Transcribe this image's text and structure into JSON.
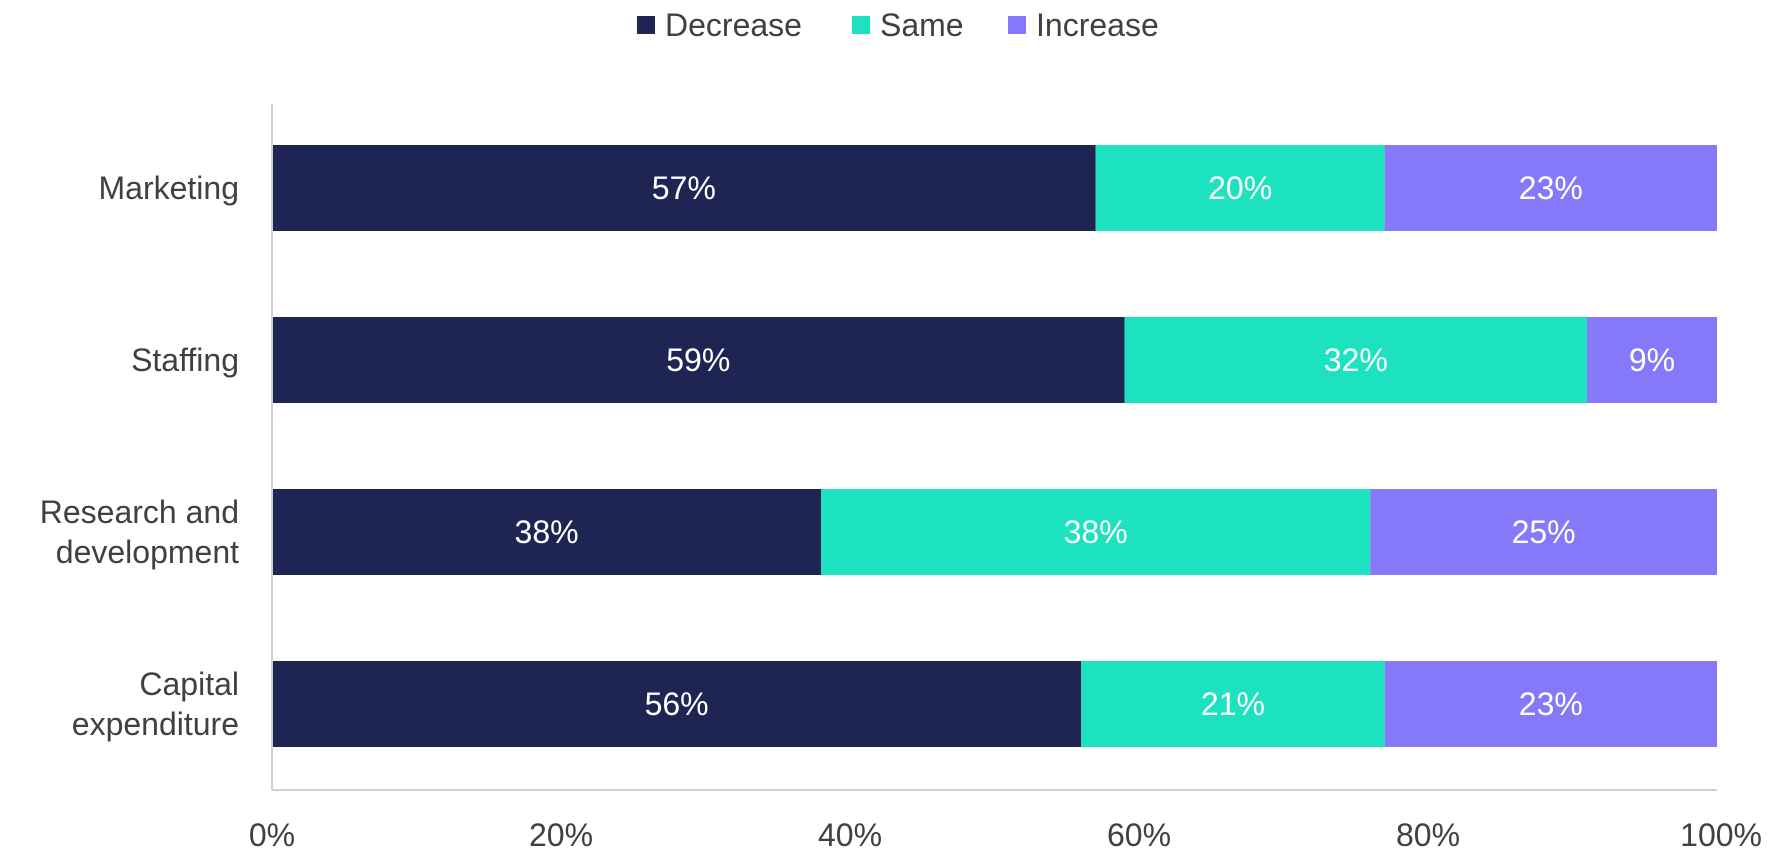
{
  "chart_data": {
    "type": "bar",
    "orientation": "horizontal",
    "stacked": true,
    "categories": [
      "Marketing",
      "Staffing",
      "Research and development",
      "Capital expenditure"
    ],
    "category_lines": [
      [
        "Marketing"
      ],
      [
        "Staffing"
      ],
      [
        "Research and",
        "development"
      ],
      [
        "Capital",
        "expenditure"
      ]
    ],
    "series": [
      {
        "name": "Decrease",
        "color": "#1f2552",
        "values": [
          57,
          59,
          38,
          56
        ],
        "labels": [
          "57%",
          "59%",
          "38%",
          "56%"
        ]
      },
      {
        "name": "Same",
        "color": "#1de2c0",
        "values": [
          20,
          32,
          38,
          21
        ],
        "labels": [
          "20%",
          "32%",
          "38%",
          "21%"
        ]
      },
      {
        "name": "Increase",
        "color": "#8679f9",
        "values": [
          23,
          9,
          25,
          23
        ],
        "labels": [
          "23%",
          "9%",
          "25%",
          "23%"
        ]
      }
    ],
    "xlim": [
      0,
      100
    ],
    "xticks": [
      0,
      20,
      40,
      60,
      80,
      100
    ],
    "xtick_labels": [
      "0%",
      "20%",
      "40%",
      "60%",
      "80%",
      "100%"
    ],
    "legend_position": "top-center",
    "grid": false,
    "title": "",
    "xlabel": "",
    "ylabel": ""
  }
}
